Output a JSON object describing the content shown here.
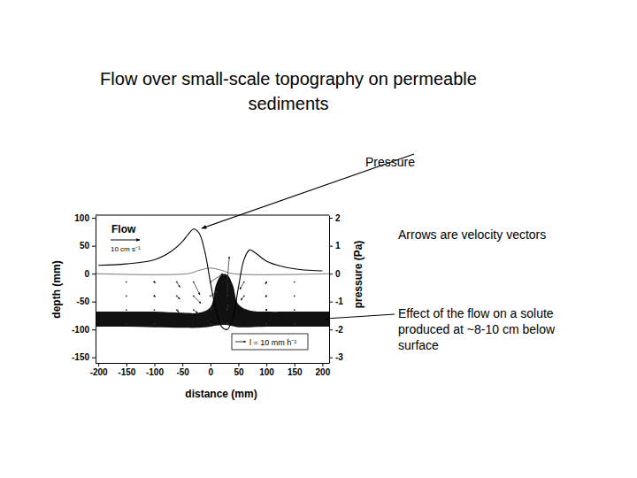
{
  "chart_data": {
    "type": "flow-field",
    "title": [
      "Flow over small-scale topography on permeable",
      "sediments"
    ],
    "x_label": "distance (mm)",
    "y_label": "depth (mm)",
    "y2_label": "pressure (Pa)",
    "xlim": [
      -205,
      212
    ],
    "xticks": [
      -200,
      -150,
      -100,
      -50,
      0,
      50,
      100,
      150,
      200
    ],
    "ylim": [
      -160,
      105
    ],
    "yticks": [
      -150,
      -100,
      -50,
      0,
      50,
      100
    ],
    "y2lim": [
      -3.2,
      2.1
    ],
    "y2ticks": [
      -3,
      -2,
      -1,
      0,
      1,
      2
    ],
    "series": [
      {
        "type": "line",
        "axis": "y2",
        "color": "#000000",
        "x": [
          -200,
          -150,
          -100,
          -70,
          -50,
          -40,
          -30,
          -20,
          -10,
          0,
          10,
          20,
          30,
          40,
          50,
          60,
          70,
          80,
          100,
          130,
          160,
          200
        ],
        "values": [
          0.3,
          0.35,
          0.5,
          0.8,
          1.15,
          1.4,
          1.6,
          1.45,
          0.8,
          -0.3,
          -1.3,
          -1.9,
          -2.0,
          -1.6,
          -0.5,
          0.5,
          0.85,
          0.75,
          0.45,
          0.25,
          0.15,
          0.1
        ]
      },
      {
        "type": "line",
        "color": "#555555",
        "x": [
          -205,
          -40,
          -20,
          0,
          20,
          40,
          212
        ],
        "values": [
          0,
          0,
          6,
          10,
          6,
          0,
          0
        ]
      },
      {
        "type": "area",
        "color": "#111111",
        "x": [
          -205,
          -150,
          -100,
          -50,
          -20,
          0,
          10,
          20,
          30,
          40,
          50,
          70,
          100,
          150,
          212
        ],
        "values": [
          -68,
          -68,
          -68,
          -70,
          -70,
          -60,
          -20,
          -2,
          -2,
          -20,
          -55,
          -66,
          -68,
          -68,
          -68
        ],
        "lower": [
          -95,
          -95,
          -96,
          -97,
          -97,
          -95,
          -93,
          -92,
          -92,
          -94,
          -96,
          -96,
          -95,
          -95,
          -95
        ]
      }
    ],
    "vectors": {
      "x": [
        -150,
        -100,
        -60,
        -30,
        0,
        30,
        60,
        100,
        150,
        -150,
        -100,
        -60,
        -30,
        0,
        30,
        60,
        100,
        150,
        -150,
        -100,
        -60,
        -30,
        0,
        30,
        60,
        100,
        150,
        -150,
        -100,
        -60,
        -30,
        0,
        30,
        60,
        100,
        150
      ],
      "depth": [
        -15,
        -15,
        -15,
        -15,
        -15,
        -15,
        -15,
        -15,
        -15,
        -40,
        -40,
        -40,
        -40,
        -40,
        -40,
        -40,
        -40,
        -40,
        -65,
        -65,
        -65,
        -65,
        -65,
        -65,
        -65,
        -65,
        -65,
        -90,
        -90,
        -90,
        -90,
        -90,
        -90,
        -90,
        -90,
        -90
      ],
      "u": [
        0,
        1,
        3,
        6,
        12,
        2,
        -4,
        -1,
        0,
        0,
        1,
        3,
        7,
        9,
        1,
        -3,
        -1,
        0,
        0,
        0,
        2,
        4,
        5,
        1,
        -2,
        0,
        0,
        0,
        0,
        1,
        2,
        2,
        0,
        -1,
        0,
        0
      ],
      "w": [
        0,
        -1,
        -5,
        -12,
        8,
        24,
        -7,
        -2,
        0,
        0,
        -1,
        -3,
        -7,
        6,
        15,
        -4,
        -1,
        0,
        0,
        0,
        -2,
        -3,
        4,
        8,
        -2,
        -1,
        0,
        0,
        0,
        -1,
        -1,
        2,
        4,
        -1,
        0,
        0
      ],
      "key": {
        "label": "l = 10 mm h⁻¹",
        "value": 10
      }
    },
    "flow_key": {
      "label": "Flow",
      "speed_label": "10 cm s⁻¹",
      "value": 10
    },
    "annotations": [
      {
        "text": [
          "Pressure"
        ]
      },
      {
        "text": [
          "Arrows are velocity  vectors"
        ]
      },
      {
        "text": [
          "Effect of the flow on a solute",
          "produced at ~8-10 cm below",
          "surface"
        ]
      }
    ]
  }
}
